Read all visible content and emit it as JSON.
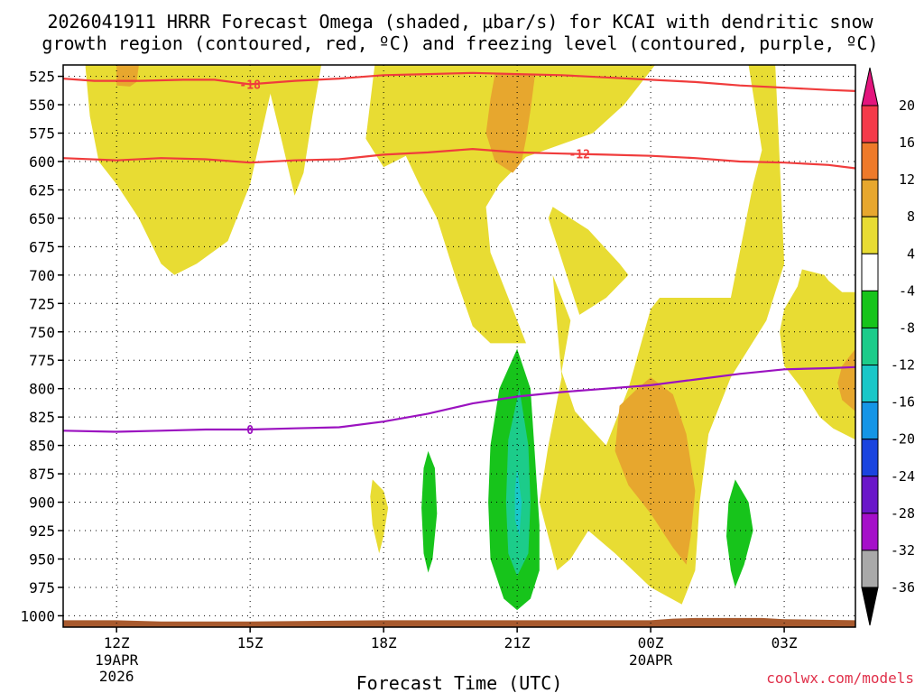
{
  "chart_data": {
    "type": "time-height cross section",
    "title_line1": "2026041911 HRRR Forecast Omega (shaded, μbar/s) for KCAI with dendritic snow",
    "title_line2": "growth region (contoured, red, ºC) and freezing level (contoured, purple, ºC)",
    "xlabel": "Forecast Time (UTC)",
    "credit": "coolwx.com/models",
    "x_range_hours": [
      10.8,
      28.6
    ],
    "y_range_mb": [
      515,
      1010
    ],
    "y_ticks": [
      "525",
      "550",
      "575",
      "600",
      "625",
      "650",
      "675",
      "700",
      "725",
      "750",
      "775",
      "800",
      "825",
      "850",
      "875",
      "900",
      "925",
      "950",
      "975",
      "1000"
    ],
    "x_ticks": [
      {
        "hour": 12,
        "label": "12Z",
        "sub1": "19APR",
        "sub2": "2026"
      },
      {
        "hour": 15,
        "label": "15Z",
        "sub1": "",
        "sub2": ""
      },
      {
        "hour": 18,
        "label": "18Z",
        "sub1": "",
        "sub2": ""
      },
      {
        "hour": 21,
        "label": "21Z",
        "sub1": "",
        "sub2": ""
      },
      {
        "hour": 24,
        "label": "00Z",
        "sub1": "20APR",
        "sub2": ""
      },
      {
        "hour": 27,
        "label": "03Z",
        "sub1": "",
        "sub2": ""
      }
    ],
    "colorbar": {
      "labels": [
        "20",
        "16",
        "12",
        "8",
        "4",
        "-4",
        "-8",
        "-12",
        "-16",
        "-20",
        "-24",
        "-28",
        "-32",
        "-36"
      ],
      "colors": [
        "#f43a4a",
        "#ee7a2a",
        "#e7a72e",
        "#e8dc33",
        "#ffffff",
        "#17c41b",
        "#1ccc8a",
        "#19c7c8",
        "#1595e6",
        "#1a44df",
        "#6a17c9",
        "#a50fc9",
        "#a9a9a9"
      ],
      "top_arrow_color": "#e3157d",
      "bottom_arrow_color": "#000000"
    },
    "contours": [
      {
        "label": "-18",
        "color": "#f03c3c",
        "points": [
          [
            10.8,
            527
          ],
          [
            11.5,
            529
          ],
          [
            12.5,
            529
          ],
          [
            13.5,
            528
          ],
          [
            14.2,
            528
          ],
          [
            15.0,
            532
          ],
          [
            16.0,
            529
          ],
          [
            17.0,
            527
          ],
          [
            18.0,
            524
          ],
          [
            19.0,
            523
          ],
          [
            20.0,
            522
          ],
          [
            21.0,
            523
          ],
          [
            22.0,
            524
          ],
          [
            23.0,
            526
          ],
          [
            24.0,
            528
          ],
          [
            25.0,
            530
          ],
          [
            26.0,
            533
          ],
          [
            27.0,
            535
          ],
          [
            28.0,
            537
          ],
          [
            28.6,
            538
          ]
        ]
      },
      {
        "label": "-12",
        "color": "#f03c3c",
        "points": [
          [
            10.8,
            597
          ],
          [
            12.0,
            599
          ],
          [
            13.0,
            597
          ],
          [
            14.0,
            598
          ],
          [
            15.0,
            601
          ],
          [
            16.0,
            599
          ],
          [
            17.0,
            598
          ],
          [
            18.0,
            594
          ],
          [
            19.0,
            592
          ],
          [
            20.0,
            589
          ],
          [
            21.0,
            592
          ],
          [
            22.0,
            593
          ],
          [
            23.0,
            594
          ],
          [
            24.0,
            595
          ],
          [
            25.0,
            597
          ],
          [
            26.0,
            600
          ],
          [
            27.0,
            601
          ],
          [
            28.0,
            603
          ],
          [
            28.6,
            606
          ]
        ]
      },
      {
        "label": "0",
        "color": "#9b12c0",
        "points": [
          [
            10.8,
            837
          ],
          [
            12.0,
            838
          ],
          [
            13.0,
            837
          ],
          [
            14.0,
            836
          ],
          [
            15.0,
            836
          ],
          [
            16.0,
            835
          ],
          [
            17.0,
            834
          ],
          [
            18.0,
            829
          ],
          [
            19.0,
            822
          ],
          [
            20.0,
            813
          ],
          [
            21.0,
            807
          ],
          [
            22.0,
            803
          ],
          [
            23.0,
            800
          ],
          [
            24.0,
            797
          ],
          [
            25.0,
            792
          ],
          [
            26.0,
            787
          ],
          [
            27.0,
            783
          ],
          [
            28.0,
            782
          ],
          [
            28.6,
            781
          ]
        ]
      }
    ],
    "omega_regions": [
      {
        "level": "4 to 8",
        "color": "#e8dc33",
        "points": [
          [
            11.3,
            515
          ],
          [
            13.2,
            515
          ],
          [
            13.3,
            520
          ],
          [
            13.8,
            540
          ],
          [
            14.2,
            560
          ],
          [
            14.8,
            525
          ],
          [
            15.0,
            515
          ],
          [
            11.3,
            515
          ],
          [
            11.3,
            517
          ],
          [
            11.4,
            560
          ],
          [
            11.6,
            600
          ],
          [
            12.0,
            620
          ],
          [
            12.5,
            650
          ],
          [
            13.0,
            690
          ],
          [
            13.3,
            700
          ],
          [
            13.8,
            690
          ],
          [
            14.5,
            670
          ],
          [
            15.0,
            620
          ],
          [
            15.6,
            515
          ]
        ]
      },
      {
        "level": "4 to 8",
        "color": "#e8dc33",
        "points": [
          [
            15.3,
            515
          ],
          [
            16.6,
            515
          ],
          [
            16.4,
            560
          ],
          [
            16.2,
            610
          ],
          [
            16.0,
            630
          ],
          [
            15.7,
            580
          ]
        ]
      },
      {
        "level": "4 to 8",
        "color": "#e8dc33",
        "points": [
          [
            17.8,
            515
          ],
          [
            20.9,
            515
          ],
          [
            20.6,
            525
          ],
          [
            20.2,
            545
          ],
          [
            19.9,
            525
          ],
          [
            19.7,
            515
          ],
          [
            23.0,
            515
          ],
          [
            24.1,
            515
          ],
          [
            23.4,
            550
          ],
          [
            22.7,
            575
          ],
          [
            21.2,
            596
          ],
          [
            20.6,
            620
          ],
          [
            20.3,
            640
          ],
          [
            20.4,
            680
          ],
          [
            20.8,
            720
          ],
          [
            21.2,
            760
          ],
          [
            20.4,
            760
          ],
          [
            20.0,
            745
          ],
          [
            19.6,
            700
          ],
          [
            19.2,
            650
          ],
          [
            18.8,
            620
          ],
          [
            18.5,
            595
          ],
          [
            18.0,
            605
          ],
          [
            17.6,
            580
          ]
        ]
      },
      {
        "level": "4 to 8",
        "color": "#e8dc33",
        "points": [
          [
            21.8,
            640
          ],
          [
            22.6,
            660
          ],
          [
            23.3,
            690
          ],
          [
            23.5,
            700
          ],
          [
            23.0,
            720
          ],
          [
            22.4,
            735
          ],
          [
            21.7,
            650
          ]
        ]
      },
      {
        "level": "4 to 8",
        "color": "#e8dc33",
        "points": [
          [
            21.8,
            700
          ],
          [
            22.2,
            740
          ],
          [
            22.0,
            785
          ],
          [
            22.3,
            820
          ],
          [
            23.0,
            850
          ],
          [
            23.5,
            800
          ],
          [
            24.0,
            730
          ],
          [
            24.2,
            720
          ],
          [
            25.8,
            720
          ],
          [
            26.0,
            680
          ],
          [
            26.3,
            620
          ],
          [
            26.5,
            590
          ],
          [
            26.2,
            515
          ],
          [
            26.8,
            515
          ],
          [
            26.9,
            600
          ],
          [
            27.0,
            690
          ],
          [
            26.6,
            740
          ],
          [
            25.8,
            790
          ],
          [
            25.3,
            840
          ],
          [
            25.1,
            900
          ],
          [
            25.0,
            960
          ],
          [
            24.7,
            990
          ],
          [
            24.0,
            975
          ],
          [
            23.2,
            945
          ],
          [
            22.6,
            925
          ],
          [
            22.2,
            950
          ],
          [
            21.9,
            960
          ],
          [
            21.5,
            900
          ],
          [
            21.7,
            850
          ],
          [
            22.0,
            790
          ]
        ]
      },
      {
        "level": "4 to 8",
        "color": "#e8dc33",
        "points": [
          [
            17.75,
            880
          ],
          [
            18.0,
            890
          ],
          [
            18.1,
            905
          ],
          [
            18.0,
            930
          ],
          [
            17.9,
            945
          ],
          [
            17.75,
            920
          ],
          [
            17.7,
            895
          ]
        ]
      },
      {
        "level": "4 to 8",
        "color": "#e8dc33",
        "points": [
          [
            28.6,
            715
          ],
          [
            28.3,
            715
          ],
          [
            28.0,
            705
          ],
          [
            27.9,
            700
          ],
          [
            27.4,
            695
          ],
          [
            27.3,
            710
          ],
          [
            27.0,
            730
          ],
          [
            26.9,
            750
          ],
          [
            27.0,
            780
          ],
          [
            27.4,
            800
          ],
          [
            27.8,
            825
          ],
          [
            28.1,
            835
          ],
          [
            28.6,
            845
          ]
        ]
      },
      {
        "level": "8 to 12",
        "color": "#e7a72e",
        "points": [
          [
            12.0,
            515
          ],
          [
            12.5,
            515
          ],
          [
            12.45,
            530
          ],
          [
            12.3,
            534
          ],
          [
            12.0,
            533
          ]
        ]
      },
      {
        "level": "8 to 12",
        "color": "#e7a72e",
        "points": [
          [
            20.5,
            523
          ],
          [
            21.4,
            524
          ],
          [
            21.3,
            555
          ],
          [
            21.2,
            580
          ],
          [
            21.1,
            600
          ],
          [
            20.9,
            610
          ],
          [
            20.5,
            600
          ],
          [
            20.3,
            575
          ],
          [
            20.4,
            545
          ]
        ]
      },
      {
        "level": "8 to 12",
        "color": "#e7a72e",
        "points": [
          [
            24.0,
            790
          ],
          [
            24.5,
            805
          ],
          [
            24.8,
            840
          ],
          [
            25.0,
            890
          ],
          [
            24.9,
            930
          ],
          [
            24.8,
            955
          ],
          [
            24.5,
            940
          ],
          [
            24.0,
            910
          ],
          [
            23.5,
            885
          ],
          [
            23.2,
            855
          ],
          [
            23.3,
            815
          ],
          [
            23.7,
            800
          ]
        ]
      },
      {
        "level": "8 to 12",
        "color": "#e7a72e",
        "points": [
          [
            28.3,
            780
          ],
          [
            28.6,
            765
          ],
          [
            28.6,
            820
          ],
          [
            28.3,
            810
          ],
          [
            28.2,
            795
          ]
        ]
      },
      {
        "level": "-4 to -8",
        "color": "#17c41b",
        "points": [
          [
            21.0,
            765
          ],
          [
            21.3,
            800
          ],
          [
            21.4,
            860
          ],
          [
            21.5,
            920
          ],
          [
            21.5,
            960
          ],
          [
            21.3,
            985
          ],
          [
            21.0,
            995
          ],
          [
            20.7,
            985
          ],
          [
            20.4,
            950
          ],
          [
            20.35,
            900
          ],
          [
            20.4,
            850
          ],
          [
            20.6,
            800
          ]
        ]
      },
      {
        "level": "-4 to -8",
        "color": "#17c41b",
        "points": [
          [
            19.0,
            855
          ],
          [
            19.15,
            870
          ],
          [
            19.2,
            910
          ],
          [
            19.1,
            950
          ],
          [
            19.0,
            962
          ],
          [
            18.9,
            945
          ],
          [
            18.85,
            905
          ],
          [
            18.9,
            870
          ]
        ]
      },
      {
        "level": "-4 to -8",
        "color": "#17c41b",
        "points": [
          [
            25.9,
            880
          ],
          [
            26.2,
            900
          ],
          [
            26.3,
            925
          ],
          [
            26.1,
            955
          ],
          [
            25.9,
            975
          ],
          [
            25.8,
            960
          ],
          [
            25.7,
            930
          ],
          [
            25.75,
            900
          ]
        ]
      },
      {
        "level": "-8 to -12",
        "color": "#1ccc8a",
        "points": [
          [
            21.05,
            800
          ],
          [
            21.25,
            850
          ],
          [
            21.3,
            900
          ],
          [
            21.25,
            945
          ],
          [
            21.0,
            965
          ],
          [
            20.8,
            945
          ],
          [
            20.75,
            900
          ],
          [
            20.8,
            845
          ]
        ]
      },
      {
        "level": "-12 to -16",
        "color": "#19c7c8",
        "points": [
          [
            21.0,
            870
          ],
          [
            21.1,
            900
          ],
          [
            21.05,
            930
          ],
          [
            20.95,
            915
          ],
          [
            20.95,
            890
          ]
        ]
      }
    ],
    "terrain": {
      "color": "#a85a2e",
      "top_mb": [
        [
          10.8,
          1004
        ],
        [
          12.0,
          1004
        ],
        [
          13.0,
          1005
        ],
        [
          15.0,
          1005
        ],
        [
          18.0,
          1004
        ],
        [
          21.0,
          1004
        ],
        [
          24.0,
          1004
        ],
        [
          24.5,
          1002.5
        ],
        [
          25.0,
          1002
        ],
        [
          26.5,
          1002
        ],
        [
          27.0,
          1003
        ],
        [
          28.6,
          1004
        ]
      ]
    }
  }
}
